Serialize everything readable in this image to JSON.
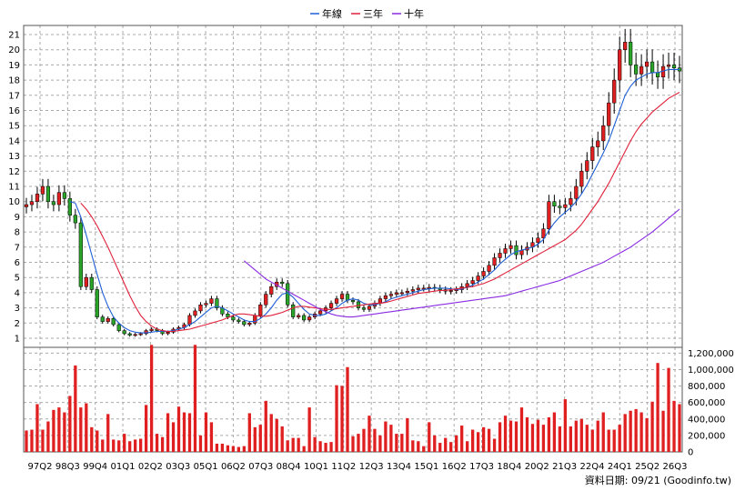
{
  "legend": [
    {
      "label": "年線",
      "color": "#1f5fd6"
    },
    {
      "label": "三年",
      "color": "#e0203a"
    },
    {
      "label": "十年",
      "color": "#8a2be2"
    }
  ],
  "source_note": "資料日期: 09/21  (Goodinfo.tw)",
  "chart_data": {
    "type": "candlestick",
    "price_axis": {
      "min": 1,
      "max": 21,
      "ticks": [
        1,
        2,
        3,
        4,
        5,
        6,
        7,
        8,
        9,
        10,
        11,
        12,
        13,
        14,
        15,
        16,
        17,
        18,
        19,
        20,
        21
      ]
    },
    "volume_axis": {
      "min": 0,
      "max": 1200000,
      "ticks": [
        0,
        200000,
        400000,
        600000,
        800000,
        1000000,
        1200000
      ],
      "tick_labels": [
        "0",
        "200,000",
        "400,000",
        "600,000",
        "800,000",
        "1,000,000",
        "1,200,000"
      ]
    },
    "x_labels": [
      "97Q2",
      "98Q3",
      "99Q4",
      "01Q1",
      "02Q2",
      "03Q3",
      "05Q1",
      "06Q2",
      "07Q3",
      "08Q4",
      "10Q1",
      "11Q2",
      "12Q3",
      "13Q4",
      "15Q1",
      "16Q2",
      "17Q3",
      "18Q4",
      "20Q2",
      "21Q3",
      "22Q4",
      "24Q1",
      "25Q2",
      "26Q3"
    ],
    "n_periods": 121,
    "up_color": "#e02020",
    "down_color": "#2aa52a",
    "closes": [
      9.8,
      10.0,
      10.5,
      11.0,
      10.0,
      9.8,
      10.6,
      10.2,
      9.1,
      8.6,
      4.4,
      5.0,
      4.2,
      2.4,
      2.1,
      2.3,
      1.9,
      1.5,
      1.3,
      1.2,
      1.25,
      1.3,
      1.5,
      1.6,
      1.5,
      1.3,
      1.4,
      1.6,
      1.7,
      1.9,
      2.5,
      2.8,
      3.2,
      3.3,
      3.6,
      3.0,
      2.6,
      2.4,
      2.2,
      2.1,
      1.9,
      2.0,
      2.5,
      3.2,
      3.9,
      4.4,
      4.7,
      4.6,
      3.2,
      2.4,
      2.5,
      2.2,
      2.4,
      2.6,
      2.8,
      3.0,
      3.3,
      3.6,
      3.9,
      3.5,
      3.4,
      3.0,
      2.9,
      3.1,
      3.3,
      3.6,
      3.8,
      3.9,
      4.0,
      4.0,
      4.1,
      4.2,
      4.3,
      4.3,
      4.35,
      4.3,
      4.2,
      4.1,
      4.15,
      4.2,
      4.4,
      4.6,
      4.8,
      5.1,
      5.4,
      5.8,
      6.3,
      6.6,
      6.9,
      7.1,
      6.5,
      6.8,
      7.0,
      7.3,
      7.6,
      8.2,
      10.0,
      9.7,
      9.6,
      9.8,
      10.2,
      11.0,
      12.0,
      12.7,
      13.6,
      14.0,
      15.0,
      16.5,
      18.0,
      20.0,
      20.5,
      19.0,
      18.4,
      18.9,
      19.2,
      18.5,
      18.2,
      18.9,
      19.0,
      18.8,
      18.6
    ],
    "volumes": [
      260000,
      270000,
      580000,
      270000,
      370000,
      510000,
      540000,
      480000,
      680000,
      1050000,
      540000,
      590000,
      300000,
      260000,
      150000,
      460000,
      150000,
      140000,
      220000,
      130000,
      150000,
      160000,
      570000,
      1300000,
      220000,
      180000,
      470000,
      360000,
      550000,
      480000,
      470000,
      1300000,
      200000,
      480000,
      360000,
      100000,
      100000,
      80000,
      70000,
      60000,
      70000,
      470000,
      300000,
      330000,
      620000,
      460000,
      400000,
      310000,
      140000,
      170000,
      170000,
      70000,
      540000,
      180000,
      130000,
      110000,
      120000,
      810000,
      800000,
      1030000,
      190000,
      220000,
      280000,
      440000,
      280000,
      200000,
      370000,
      330000,
      220000,
      220000,
      410000,
      140000,
      130000,
      70000,
      360000,
      200000,
      110000,
      170000,
      120000,
      200000,
      320000,
      130000,
      270000,
      240000,
      300000,
      280000,
      160000,
      360000,
      440000,
      380000,
      370000,
      540000,
      420000,
      340000,
      390000,
      330000,
      420000,
      480000,
      310000,
      640000,
      310000,
      380000,
      400000,
      330000,
      270000,
      380000,
      480000,
      270000,
      270000,
      330000,
      460000,
      500000,
      520000,
      480000,
      410000,
      610000,
      1080000,
      500000,
      1020000,
      620000,
      580000
    ],
    "series": [
      {
        "name": "年線",
        "values": [
          null,
          null,
          null,
          null,
          null,
          null,
          null,
          null,
          10.0,
          9.9,
          9.0,
          7.8,
          6.5,
          5.2,
          4.0,
          3.1,
          2.4,
          2.0,
          1.7,
          1.5,
          1.4,
          1.35,
          1.35,
          1.4,
          1.45,
          1.45,
          1.45,
          1.5,
          1.6,
          1.7,
          1.9,
          2.1,
          2.4,
          2.7,
          3.0,
          3.1,
          3.0,
          2.8,
          2.6,
          2.4,
          2.2,
          2.1,
          2.1,
          2.3,
          2.6,
          3.0,
          3.5,
          3.9,
          4.0,
          3.7,
          3.3,
          2.9,
          2.6,
          2.5,
          2.5,
          2.6,
          2.8,
          3.0,
          3.3,
          3.5,
          3.6,
          3.5,
          3.3,
          3.2,
          3.2,
          3.3,
          3.4,
          3.6,
          3.7,
          3.8,
          3.9,
          4.0,
          4.1,
          4.2,
          4.25,
          4.3,
          4.3,
          4.3,
          4.25,
          4.2,
          4.25,
          4.35,
          4.5,
          4.7,
          4.9,
          5.2,
          5.5,
          5.9,
          6.2,
          6.5,
          6.7,
          6.8,
          6.9,
          7.0,
          7.2,
          7.5,
          8.1,
          8.6,
          9.0,
          9.3,
          9.6,
          10.0,
          10.5,
          11.1,
          11.8,
          12.5,
          13.2,
          14.0,
          15.0,
          16.0,
          17.0,
          17.6,
          18.0,
          18.2,
          18.4,
          18.5,
          18.5,
          18.6,
          18.7,
          18.7,
          18.7
        ]
      },
      {
        "name": "三年",
        "values": [
          null,
          null,
          null,
          null,
          null,
          null,
          null,
          null,
          null,
          null,
          9.9,
          9.5,
          9.0,
          8.4,
          7.7,
          7.0,
          6.2,
          5.4,
          4.6,
          3.8,
          3.1,
          2.5,
          2.1,
          1.8,
          1.6,
          1.5,
          1.45,
          1.45,
          1.5,
          1.55,
          1.6,
          1.7,
          1.8,
          1.9,
          2.0,
          2.1,
          2.2,
          2.35,
          2.5,
          2.6,
          2.6,
          2.55,
          2.5,
          2.45,
          2.45,
          2.5,
          2.6,
          2.7,
          2.85,
          3.0,
          3.1,
          3.1,
          3.05,
          3.0,
          2.95,
          2.9,
          2.9,
          2.95,
          3.0,
          3.05,
          3.1,
          3.15,
          3.2,
          3.25,
          3.3,
          3.3,
          3.35,
          3.45,
          3.55,
          3.65,
          3.75,
          3.85,
          3.95,
          4.0,
          4.05,
          4.1,
          4.15,
          4.15,
          4.2,
          4.25,
          4.3,
          4.35,
          4.4,
          4.5,
          4.6,
          4.75,
          4.9,
          5.1,
          5.3,
          5.5,
          5.7,
          5.9,
          6.1,
          6.3,
          6.5,
          6.7,
          6.9,
          7.1,
          7.3,
          7.5,
          7.8,
          8.1,
          8.5,
          9.0,
          9.5,
          10.0,
          10.6,
          11.2,
          11.9,
          12.6,
          13.3,
          14.0,
          14.6,
          15.1,
          15.5,
          15.9,
          16.2,
          16.5,
          16.8,
          17.0,
          17.2
        ]
      },
      {
        "name": "十年",
        "values": [
          null,
          null,
          null,
          null,
          null,
          null,
          null,
          null,
          null,
          null,
          null,
          null,
          null,
          null,
          null,
          null,
          null,
          null,
          null,
          null,
          null,
          null,
          null,
          null,
          null,
          null,
          null,
          null,
          null,
          null,
          null,
          null,
          null,
          null,
          null,
          null,
          null,
          null,
          null,
          null,
          6.1,
          5.8,
          5.5,
          5.2,
          4.9,
          4.7,
          4.5,
          4.3,
          4.1,
          3.9,
          3.7,
          3.5,
          3.3,
          3.1,
          2.9,
          2.75,
          2.6,
          2.5,
          2.45,
          2.4,
          2.4,
          2.45,
          2.5,
          2.55,
          2.6,
          2.65,
          2.7,
          2.75,
          2.8,
          2.85,
          2.9,
          2.95,
          3.0,
          3.05,
          3.1,
          3.15,
          3.2,
          3.25,
          3.3,
          3.35,
          3.4,
          3.45,
          3.5,
          3.55,
          3.6,
          3.65,
          3.7,
          3.75,
          3.8,
          3.9,
          4.0,
          4.1,
          4.2,
          4.3,
          4.4,
          4.5,
          4.6,
          4.7,
          4.8,
          4.95,
          5.1,
          5.25,
          5.4,
          5.55,
          5.7,
          5.85,
          6.0,
          6.2,
          6.4,
          6.6,
          6.8,
          7.0,
          7.25,
          7.5,
          7.75,
          8.0,
          8.3,
          8.6,
          8.9,
          9.2,
          9.5
        ]
      }
    ]
  }
}
